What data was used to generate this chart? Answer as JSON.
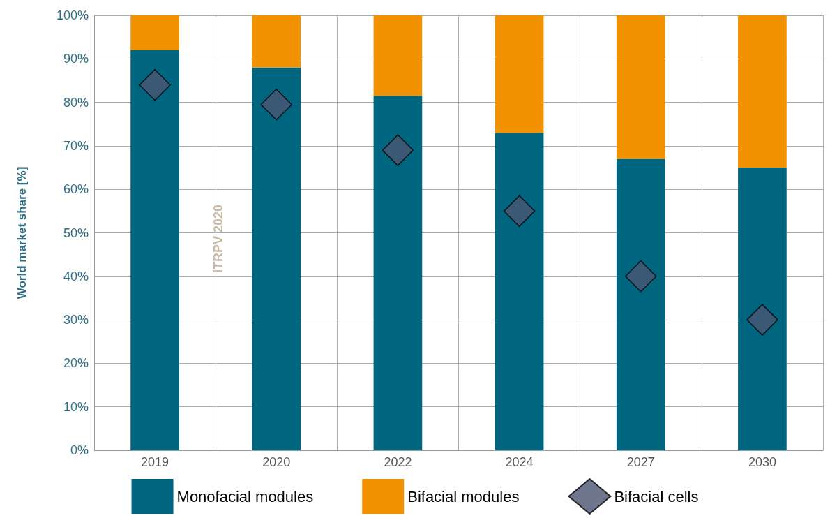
{
  "chart_data": {
    "type": "bar",
    "stacked": true,
    "ylabel": "World market share [%]",
    "categories": [
      "2019",
      "2020",
      "2022",
      "2024",
      "2027",
      "2030"
    ],
    "series": [
      {
        "name": "Monofacial modules",
        "color": "#006680",
        "values": [
          92,
          88,
          81.5,
          73,
          67,
          65
        ]
      },
      {
        "name": "Bifacial modules",
        "color": "#f39200",
        "values": [
          8,
          12,
          18.5,
          27,
          33,
          35
        ]
      },
      {
        "name": "Bifacial cells",
        "type": "scatter",
        "color": "#4a5570",
        "marker": "diamond",
        "values": [
          84,
          79.5,
          69,
          55,
          40,
          30
        ]
      }
    ],
    "ylim": [
      0,
      100
    ],
    "yticks": [
      {
        "value": 0,
        "label": "0%"
      },
      {
        "value": 10,
        "label": "10%"
      },
      {
        "value": 20,
        "label": "20%"
      },
      {
        "value": 30,
        "label": "30%"
      },
      {
        "value": 40,
        "label": "40%"
      },
      {
        "value": 50,
        "label": "50%"
      },
      {
        "value": 60,
        "label": "60%"
      },
      {
        "value": 70,
        "label": "70%"
      },
      {
        "value": 80,
        "label": "80%"
      },
      {
        "value": 90,
        "label": "90%"
      },
      {
        "value": 100,
        "label": "100%"
      }
    ],
    "grid": true,
    "legend": "bottom",
    "annotations": [
      "ITRPV 2020"
    ]
  }
}
